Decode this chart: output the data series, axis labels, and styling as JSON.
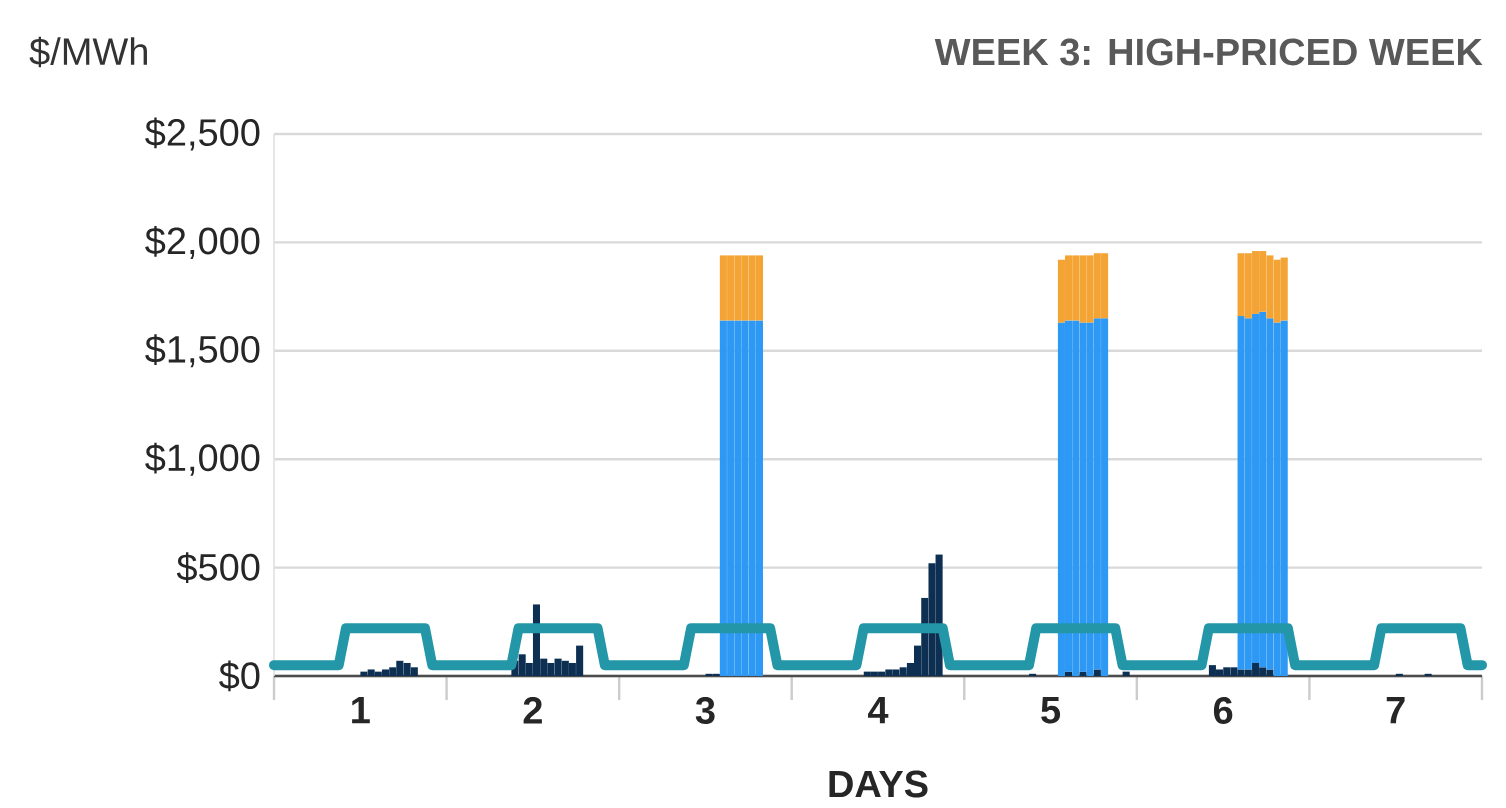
{
  "chart_data": {
    "type": "bar",
    "title": "WEEK 3: HIGH-PRICED WEEK",
    "xlabel": "DAYS",
    "ylabel": "$/MWh",
    "stacked": true,
    "grid": "y",
    "xlim": [
      0.5,
      7.5
    ],
    "xticks": [
      {
        "value": 0.5,
        "label": null
      },
      1,
      {
        "value": 1.5,
        "label": null
      },
      2,
      {
        "value": 2.5,
        "label": null
      },
      3,
      {
        "value": 3.5,
        "label": null
      },
      4,
      {
        "value": 4.5,
        "label": null
      },
      5,
      {
        "value": 5.5,
        "label": null
      },
      6,
      {
        "value": 6.5,
        "label": null
      },
      7,
      {
        "value": 7.5,
        "label": null
      }
    ],
    "ylim": [
      0,
      2500
    ],
    "yticks": [
      {
        "value": 0,
        "label": "$0"
      },
      {
        "value": 500,
        "label": "$500"
      },
      {
        "value": 1000,
        "label": "$1,000"
      },
      {
        "value": 1500,
        "label": "$1,500"
      },
      {
        "value": 2000,
        "label": "$2,000"
      },
      {
        "value": 2500,
        "label": "$2,500"
      }
    ],
    "x": [
      1.021,
      1.063,
      1.104,
      1.146,
      1.188,
      1.229,
      1.271,
      1.313,
      1.854,
      1.896,
      1.938,
      1.979,
      2.021,
      2.063,
      2.104,
      2.146,
      2.188,
      2.229,
      2.271,
      3.021,
      3.063,
      3.104,
      3.146,
      3.188,
      3.229,
      3.271,
      3.313,
      3.938,
      3.979,
      4.021,
      4.063,
      4.104,
      4.146,
      4.188,
      4.229,
      4.271,
      4.313,
      4.354,
      4.896,
      5.063,
      5.104,
      5.146,
      5.188,
      5.229,
      5.271,
      5.313,
      5.438,
      5.938,
      5.979,
      6.021,
      6.063,
      6.104,
      6.146,
      6.188,
      6.229,
      6.271,
      6.313,
      6.354,
      7.021,
      7.188
    ],
    "series": [
      {
        "color": "#0d2f52",
        "values": [
          20,
          30,
          20,
          30,
          40,
          70,
          60,
          40,
          null,
          70,
          100,
          60,
          330,
          80,
          60,
          80,
          70,
          60,
          140,
          10,
          10,
          null,
          null,
          null,
          null,
          null,
          null,
          20,
          20,
          20,
          30,
          30,
          40,
          60,
          140,
          360,
          520,
          560,
          10,
          null,
          20,
          null,
          20,
          null,
          30,
          null,
          20,
          50,
          30,
          40,
          40,
          30,
          30,
          60,
          40,
          30,
          null,
          null,
          10,
          10
        ]
      },
      {
        "color": "#2e99f5",
        "values": [
          null,
          null,
          null,
          null,
          null,
          null,
          null,
          null,
          null,
          null,
          null,
          null,
          null,
          null,
          null,
          null,
          null,
          null,
          null,
          null,
          null,
          1640,
          1640,
          1640,
          1640,
          1640,
          1640,
          null,
          null,
          null,
          null,
          null,
          null,
          null,
          null,
          null,
          null,
          null,
          null,
          1630,
          1620,
          1640,
          1610,
          1630,
          1620,
          1650,
          null,
          null,
          null,
          null,
          null,
          1630,
          1620,
          1610,
          1640,
          1620,
          1630,
          1640,
          null,
          null
        ]
      },
      {
        "color": "#f4a435",
        "values": [
          null,
          null,
          null,
          null,
          null,
          null,
          null,
          null,
          null,
          null,
          null,
          null,
          null,
          null,
          null,
          null,
          null,
          null,
          null,
          null,
          null,
          300,
          300,
          300,
          300,
          300,
          300,
          null,
          null,
          null,
          null,
          null,
          null,
          null,
          null,
          null,
          null,
          null,
          null,
          290,
          300,
          300,
          310,
          310,
          300,
          300,
          null,
          null,
          null,
          null,
          null,
          290,
          300,
          290,
          280,
          290,
          290,
          290,
          null,
          null
        ]
      },
      {
        "type": "line",
        "color": "#2397a8",
        "x": [
          0.5,
          0.875,
          0.917,
          1.375,
          1.417,
          1.875,
          1.917,
          2.375,
          2.417,
          2.875,
          2.917,
          3.375,
          3.417,
          3.875,
          3.917,
          4.375,
          4.417,
          4.875,
          4.917,
          5.375,
          5.417,
          5.875,
          5.917,
          6.375,
          6.417,
          6.875,
          6.917,
          7.375,
          7.417,
          7.5
        ],
        "values": [
          50,
          50,
          220,
          220,
          50,
          50,
          220,
          220,
          50,
          50,
          220,
          220,
          50,
          50,
          220,
          220,
          50,
          50,
          220,
          220,
          50,
          50,
          220,
          220,
          50,
          50,
          220,
          220,
          50,
          50
        ]
      }
    ]
  }
}
